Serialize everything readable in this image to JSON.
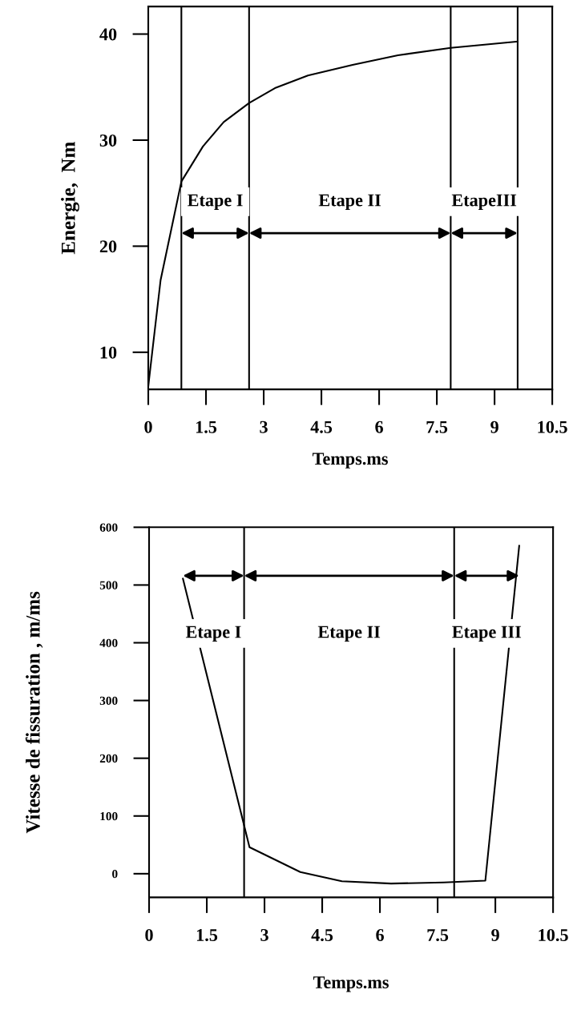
{
  "chart_data": [
    {
      "type": "line",
      "xlabel": "Temps.ms",
      "ylabel": "Energie,  Nm",
      "xlim": [
        0,
        10.5
      ],
      "xticks": [
        0,
        1.5,
        3,
        4.5,
        6,
        7.5,
        9,
        10.5
      ],
      "ylim": [
        6.5,
        42.6
      ],
      "yticks": [
        10,
        20,
        30,
        40
      ],
      "grid": false,
      "legend": false,
      "marker": "none",
      "line_style": "solid",
      "series": [
        {
          "color": "#000000",
          "x": [
            0,
            0.32,
            0.86,
            1.42,
            1.96,
            2.62,
            3.29,
            4.15,
            5.31,
            6.49,
            7.86,
            9.6
          ],
          "values": [
            6.8,
            16.8,
            26.1,
            29.4,
            31.7,
            33.5,
            34.9,
            36.1,
            37.1,
            38.0,
            38.7,
            39.3
          ]
        }
      ],
      "ref_lines": [
        {
          "axis": "x",
          "value": 0.86,
          "color": "#000000"
        },
        {
          "axis": "x",
          "value": 2.62,
          "color": "#000000"
        },
        {
          "axis": "x",
          "value": 7.86,
          "color": "#000000"
        },
        {
          "axis": "x",
          "value": 9.6,
          "color": "#000000"
        }
      ],
      "annotations": [
        "Etape I",
        "Etape II",
        "EtapeIII"
      ]
    },
    {
      "type": "line",
      "xlabel": "Temps.ms",
      "ylabel": "Vitesse de fissuration , m/ms",
      "xlim": [
        0,
        10.5
      ],
      "xticks": [
        0,
        1.5,
        3,
        4.5,
        6,
        7.5,
        9,
        10.5
      ],
      "ylim": [
        -41,
        600
      ],
      "yticks": [
        0,
        100,
        200,
        300,
        400,
        500,
        600
      ],
      "grid": false,
      "legend": false,
      "marker": "none",
      "line_style": "solid",
      "series": [
        {
          "color": "#000000",
          "x": [
            0.88,
            2.61,
            3.93,
            5.01,
            6.29,
            7.66,
            8.74,
            9.62
          ],
          "values": [
            511,
            46,
            3,
            -13,
            -17,
            -15,
            -12,
            568
          ]
        }
      ],
      "ref_lines": [
        {
          "axis": "x",
          "value": 2.47,
          "color": "#000000"
        },
        {
          "axis": "x",
          "value": 7.93,
          "color": "#000000"
        }
      ],
      "annotations": [
        "Etape I",
        "Etape II",
        "Etape III"
      ]
    }
  ]
}
